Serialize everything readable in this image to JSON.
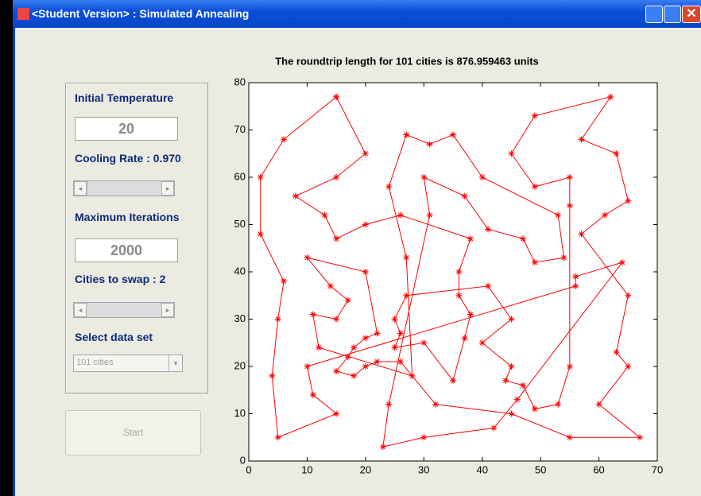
{
  "window": {
    "title": "<Student Version> : Simulated Annealing"
  },
  "panel": {
    "temperature_label": "Initial Temperature",
    "temperature_value": "20",
    "cooling_label": "Cooling Rate : 0.970",
    "iterations_label": "Maximum Iterations",
    "iterations_value": "2000",
    "swap_label": "Cities to swap : 2",
    "dataset_label": "Select data set",
    "dataset_value": "101 cities"
  },
  "button": {
    "label": "Start"
  },
  "chart_data": {
    "type": "line",
    "title": "The roundtrip length for 101 cities is  876.959463 units",
    "x": [
      15,
      20,
      15,
      8,
      13,
      15,
      20,
      26,
      38,
      36,
      36,
      38,
      37,
      35,
      30,
      25,
      26,
      25,
      27,
      41,
      45,
      40,
      45,
      44,
      47,
      49,
      53,
      55,
      55,
      55,
      49,
      45,
      49,
      62,
      57,
      63,
      65,
      61,
      57,
      65,
      63,
      65,
      60,
      67,
      55,
      45,
      32,
      26,
      22,
      20,
      18,
      15,
      17,
      18,
      20,
      22,
      20,
      10,
      14,
      17,
      15,
      11,
      12,
      28,
      27,
      24,
      27,
      31,
      35,
      40,
      53,
      54,
      49,
      47,
      41,
      37,
      30,
      31,
      24,
      23,
      30,
      42,
      46,
      64,
      56,
      56,
      10,
      11,
      15,
      5,
      4,
      5,
      6,
      2,
      2,
      6,
      15
    ],
    "series": [
      {
        "color": "#ff0000",
        "values": [
          77,
          65,
          60,
          56,
          52,
          47,
          50,
          52,
          47,
          40,
          35,
          31,
          26,
          17,
          25,
          24,
          27,
          30,
          35,
          37,
          30,
          25,
          20,
          17,
          16,
          11,
          12,
          20,
          54,
          60,
          58,
          65,
          73,
          77,
          68,
          65,
          55,
          52,
          48,
          35,
          23,
          20,
          12,
          5,
          5,
          10,
          12,
          21,
          21,
          20,
          18,
          19,
          22,
          24,
          26,
          27,
          40,
          43,
          37,
          34,
          30,
          31,
          24,
          18,
          43,
          58,
          69,
          67,
          69,
          60,
          52,
          43,
          42,
          47,
          49,
          56,
          60,
          52,
          12,
          3,
          5,
          7,
          13,
          42,
          39,
          37,
          20,
          14,
          10,
          5,
          18,
          30,
          38,
          48,
          60,
          68,
          77
        ]
      }
    ],
    "marker": "*",
    "xlim": [
      0,
      70
    ],
    "ylim": [
      0,
      80
    ],
    "xticks": [
      0,
      10,
      20,
      30,
      40,
      50,
      60,
      70
    ],
    "yticks": [
      0,
      10,
      20,
      30,
      40,
      50,
      60,
      70,
      80
    ]
  }
}
